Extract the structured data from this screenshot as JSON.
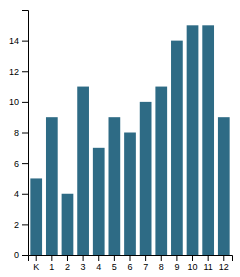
{
  "chart_data": {
    "type": "bar",
    "categories": [
      "K",
      "1",
      "2",
      "3",
      "4",
      "5",
      "6",
      "7",
      "8",
      "9",
      "10",
      "11",
      "12"
    ],
    "values": [
      5,
      9,
      4,
      11,
      7,
      9,
      8,
      10,
      11,
      14,
      15,
      15,
      9
    ],
    "color": "#2e6b85",
    "ylim": [
      0,
      16
    ],
    "yticks": [
      0,
      2,
      4,
      6,
      8,
      10,
      12,
      14
    ],
    "grid": false
  }
}
